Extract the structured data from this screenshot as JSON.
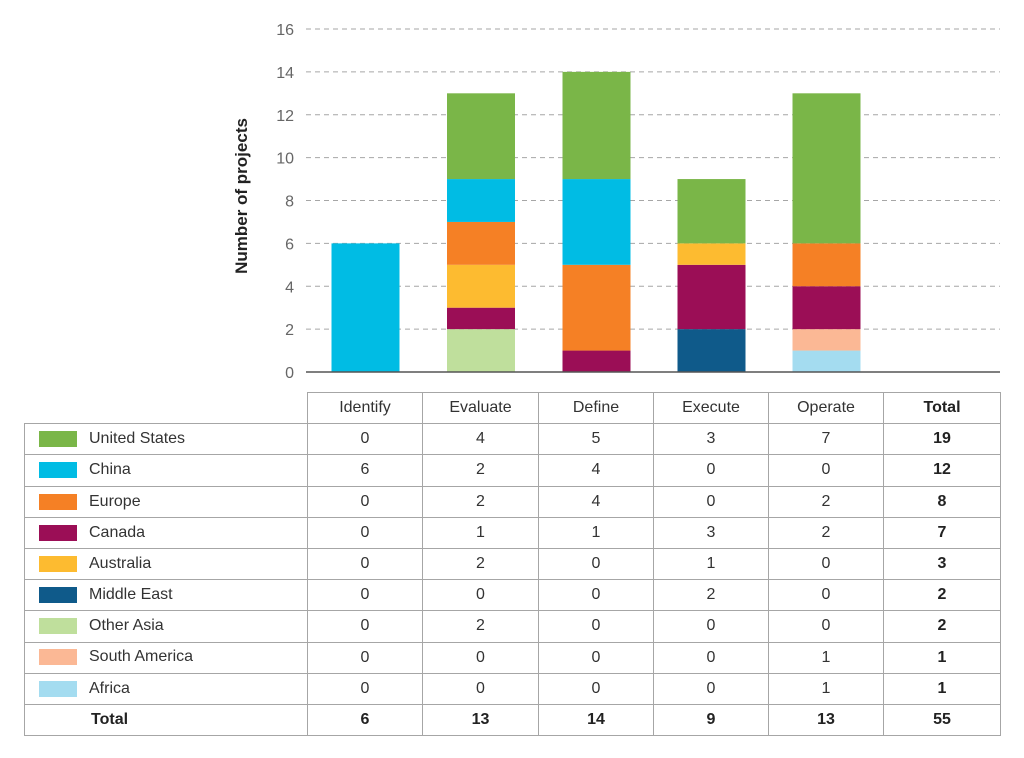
{
  "chart_data": {
    "type": "bar",
    "stacked": true,
    "ylabel": "Number of projects",
    "ylim": [
      0,
      16
    ],
    "yticks": [
      0,
      2,
      4,
      6,
      8,
      10,
      12,
      14,
      16
    ],
    "grid": "dashed horizontal",
    "categories": [
      "Identify",
      "Evaluate",
      "Define",
      "Execute",
      "Operate"
    ],
    "series": [
      {
        "name": "United States",
        "color": "#7ab648",
        "values": [
          0,
          4,
          5,
          3,
          7
        ]
      },
      {
        "name": "China",
        "color": "#00bce4",
        "values": [
          6,
          2,
          4,
          0,
          0
        ]
      },
      {
        "name": "Europe",
        "color": "#f58025",
        "values": [
          0,
          2,
          4,
          0,
          2
        ]
      },
      {
        "name": "Canada",
        "color": "#9b0e56",
        "values": [
          0,
          1,
          1,
          3,
          2
        ]
      },
      {
        "name": "Australia",
        "color": "#fdbb30",
        "values": [
          0,
          2,
          0,
          1,
          0
        ]
      },
      {
        "name": "Middle East",
        "color": "#0f5a8a",
        "values": [
          0,
          0,
          0,
          2,
          0
        ]
      },
      {
        "name": "Other Asia",
        "color": "#bfdf9c",
        "values": [
          0,
          2,
          0,
          0,
          0
        ]
      },
      {
        "name": "South America",
        "color": "#fbb895",
        "values": [
          0,
          0,
          0,
          0,
          1
        ]
      },
      {
        "name": "Africa",
        "color": "#a4dcf0",
        "values": [
          0,
          0,
          0,
          0,
          1
        ]
      }
    ],
    "stack_order": [
      "Other Asia",
      "Middle East",
      "Africa",
      "South America",
      "Canada",
      "Australia",
      "Europe",
      "China",
      "United States"
    ],
    "row_totals": [
      19,
      12,
      8,
      7,
      3,
      2,
      2,
      1,
      1
    ],
    "column_totals": [
      6,
      13,
      14,
      9,
      13
    ],
    "grand_total": 55,
    "table_headers": [
      "Identify",
      "Evaluate",
      "Define",
      "Execute",
      "Operate",
      "Total"
    ],
    "total_label": "Total"
  }
}
